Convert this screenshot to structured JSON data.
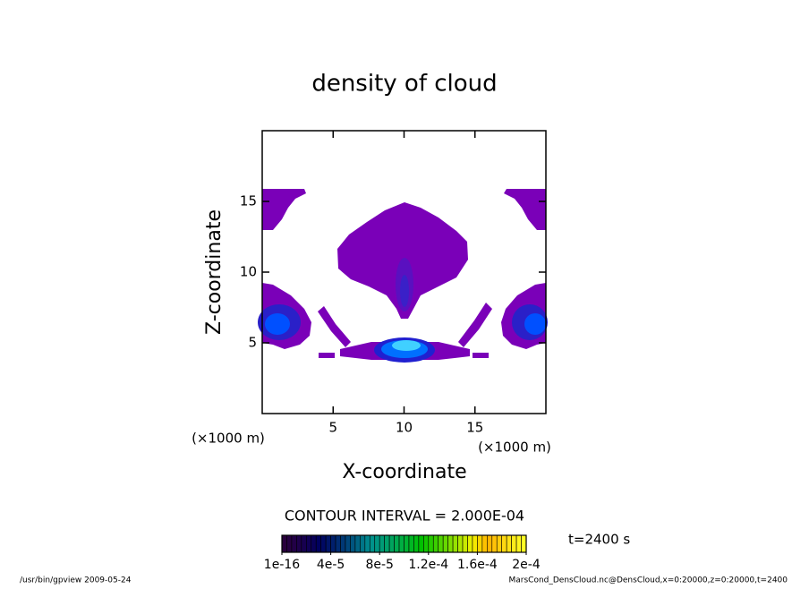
{
  "chart_data": {
    "type": "contour",
    "title": "density of cloud",
    "x_label": "X-coordinate",
    "y_label": "Z-coordinate",
    "x_unit": "(×1000 m)",
    "y_unit": "(×1000 m)",
    "xlim": [
      0,
      20
    ],
    "ylim": [
      0,
      20
    ],
    "xticks": [
      5,
      10,
      15
    ],
    "yticks": [
      5,
      10,
      15
    ],
    "contour_interval": "CONTOUR INTERVAL = 2.000E-04",
    "time_label": "t=2400 s",
    "colorbar": {
      "clim": [
        0,
        0.0002
      ],
      "ticks": [
        {
          "value": 1e-16,
          "label": "1e-16"
        },
        {
          "value": 4e-05,
          "label": "4e-5"
        },
        {
          "value": 8e-05,
          "label": "8e-5"
        },
        {
          "value": 0.00012,
          "label": "1.2e-4"
        },
        {
          "value": 0.00016,
          "label": "1.6e-4"
        },
        {
          "value": 0.0002,
          "label": "2e-4"
        }
      ]
    },
    "footer_left": "/usr/bin/gpview  2009-05-24",
    "footer_right": "MarsCond_DensCloud.nc@DensCloud,x=0:20000,z=0:20000,t=2400"
  }
}
